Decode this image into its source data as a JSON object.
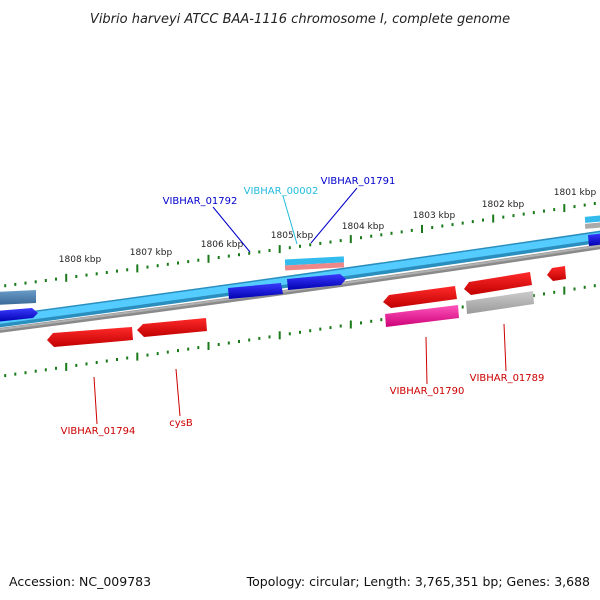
{
  "title": "Vibrio harveyi ATCC BAA-1116 chromosome I, complete genome",
  "footer": {
    "accession": "Accession: NC_009783",
    "topology": "Topology: circular; Length: 3,765,351 bp; Genes: 3,688"
  },
  "colors": {
    "background": "#ffffff",
    "backbone_light": "#55ccff",
    "backbone_dark": "#2a8fbf",
    "backbone_gray": "#8a8a8a",
    "tick_green": "#1a7a1a",
    "forward_gene": "#0000dd",
    "reverse_gene": "#e00000",
    "rna_gene": "#dd1188",
    "pseudo_gene": "#aaaaaa",
    "label_blue": "#0000cc",
    "label_cyan": "#22bbdd",
    "label_red": "#cc0000"
  },
  "scale_labels": [
    "1801 kbp",
    "1802 kbp",
    "1803 kbp",
    "1804 kbp",
    "1805 kbp",
    "1806 kbp",
    "1807 kbp",
    "1808 kbp"
  ],
  "gene_labels_top": [
    {
      "text": "VIBHAR_01792",
      "color": "label_blue"
    },
    {
      "text": "VIBHAR_00002",
      "color": "label_cyan"
    },
    {
      "text": "VIBHAR_01791",
      "color": "label_blue"
    }
  ],
  "gene_labels_bottom": [
    {
      "text": "VIBHAR_01794",
      "color": "label_red"
    },
    {
      "text": "cysB",
      "color": "label_red"
    },
    {
      "text": "VIBHAR_01790",
      "color": "label_red"
    },
    {
      "text": "VIBHAR_01789",
      "color": "label_red"
    }
  ]
}
